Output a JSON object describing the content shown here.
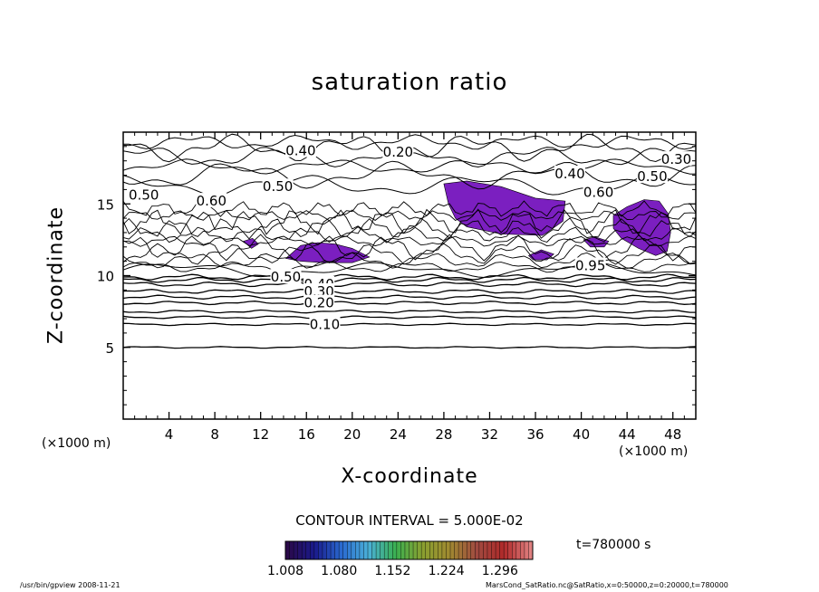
{
  "header": {
    "title": "saturation ratio"
  },
  "chart_data": {
    "type": "contour",
    "title": "saturation ratio",
    "xlabel": "X-coordinate",
    "ylabel": "Z-coordinate",
    "x_unit_note": "(×1000 m)",
    "xlim": [
      0,
      50
    ],
    "ylim": [
      0,
      20
    ],
    "x_ticks": [
      4,
      8,
      12,
      16,
      20,
      24,
      28,
      32,
      36,
      40,
      44,
      48
    ],
    "y_ticks": [
      5,
      10,
      15
    ],
    "contour_interval_text": "CONTOUR INTERVAL = 5.000E-02",
    "contour_labels": [
      {
        "text": "0.40",
        "x": 15.5,
        "y": 18.7
      },
      {
        "text": "0.20",
        "x": 24.0,
        "y": 18.6
      },
      {
        "text": "0.30",
        "x": 48.3,
        "y": 18.1
      },
      {
        "text": "0.40",
        "x": 39.0,
        "y": 17.1
      },
      {
        "text": "0.50",
        "x": 46.2,
        "y": 16.9
      },
      {
        "text": "0.50",
        "x": 13.5,
        "y": 16.2
      },
      {
        "text": "0.60",
        "x": 41.5,
        "y": 15.8
      },
      {
        "text": "0.50",
        "x": 1.8,
        "y": 15.6
      },
      {
        "text": "0.60",
        "x": 7.7,
        "y": 15.2
      },
      {
        "text": "0.50",
        "x": 14.2,
        "y": 9.9
      },
      {
        "text": "0.40",
        "x": 17.1,
        "y": 9.4
      },
      {
        "text": "0.30",
        "x": 17.1,
        "y": 8.9
      },
      {
        "text": "0.20",
        "x": 17.1,
        "y": 8.1
      },
      {
        "text": "0.10",
        "x": 17.6,
        "y": 6.6
      },
      {
        "text": "0.95",
        "x": 40.8,
        "y": 10.7
      }
    ],
    "horizontal_contours_z": [
      5.0,
      6.6,
      7.1,
      7.5,
      8.1,
      8.5,
      8.9,
      9.4,
      9.7,
      9.9
    ],
    "upper_contours_z": [
      10.4,
      16.3,
      17.0,
      17.6,
      18.3,
      18.9,
      19.3
    ],
    "supersaturated_regions_x_z": [
      [
        [
          28.0,
          16.4
        ],
        [
          30.0,
          16.6
        ],
        [
          33.0,
          16.2
        ],
        [
          36.0,
          15.4
        ],
        [
          38.6,
          15.2
        ],
        [
          38.4,
          13.8
        ],
        [
          37.0,
          13.0
        ],
        [
          36.6,
          12.8
        ],
        [
          33.0,
          12.9
        ],
        [
          30.0,
          13.4
        ],
        [
          29.0,
          14.0
        ],
        [
          28.4,
          15.0
        ]
      ],
      [
        [
          14.2,
          11.2
        ],
        [
          15.5,
          12.1
        ],
        [
          17.0,
          12.3
        ],
        [
          18.5,
          12.2
        ],
        [
          20.0,
          11.9
        ],
        [
          21.5,
          11.3
        ],
        [
          20.0,
          10.9
        ],
        [
          17.5,
          10.9
        ],
        [
          15.5,
          11.0
        ]
      ],
      [
        [
          42.8,
          14.2
        ],
        [
          44.0,
          14.8
        ],
        [
          45.5,
          15.3
        ],
        [
          46.8,
          15.2
        ],
        [
          47.6,
          14.3
        ],
        [
          47.8,
          13.0
        ],
        [
          47.5,
          11.7
        ],
        [
          46.5,
          11.4
        ],
        [
          45.0,
          11.9
        ],
        [
          43.5,
          12.6
        ],
        [
          42.8,
          13.3
        ]
      ],
      [
        [
          40.2,
          12.5
        ],
        [
          41.2,
          12.7
        ],
        [
          42.4,
          12.4
        ],
        [
          42.0,
          12.0
        ],
        [
          40.8,
          12.0
        ]
      ],
      [
        [
          35.4,
          11.4
        ],
        [
          36.5,
          11.8
        ],
        [
          37.6,
          11.5
        ],
        [
          37.0,
          11.1
        ],
        [
          35.8,
          11.1
        ]
      ],
      [
        [
          10.5,
          12.4
        ],
        [
          11.3,
          12.6
        ],
        [
          11.8,
          12.2
        ],
        [
          11.2,
          11.9
        ]
      ]
    ],
    "colorbar": {
      "min": 1.008,
      "max": 1.34,
      "tick_labels": [
        "1.008",
        "1.080",
        "1.152",
        "1.224",
        "1.296"
      ],
      "colors": [
        "#2a0a4a",
        "#1a1a8c",
        "#2a6ad0",
        "#4ab0d8",
        "#3ab050",
        "#8aa030",
        "#a08a30",
        "#a04a40",
        "#b02a2a",
        "#e08080"
      ]
    }
  },
  "annotations": {
    "x_unit_left": "(×1000 m)",
    "x_unit_right": "(×1000 m)",
    "time_label": "t=780000  s",
    "contour_interval": "CONTOUR INTERVAL = 5.000E-02"
  },
  "footer": {
    "left": "/usr/bin/gpview   2008-11-21",
    "right": "MarsCond_SatRatio.nc@SatRatio,x=0:50000,z=0:20000,t=780000"
  },
  "colors": {
    "fill": "#7b1fc0",
    "line": "#000000",
    "background": "#ffffff"
  }
}
